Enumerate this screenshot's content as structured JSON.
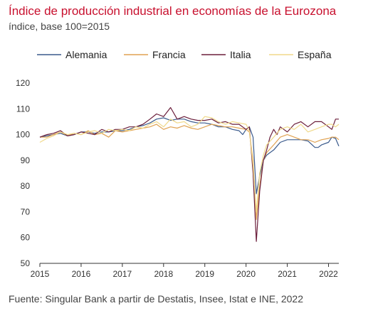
{
  "chart_data": {
    "type": "line",
    "title": "Índice de producción industrial en economías de la Eurozona",
    "subtitle": "índice, base 100=2015",
    "source": "Fuente: Singular Bank a partir de Destatis, Insee, Istat e INE, 2022",
    "ylim": [
      50,
      120
    ],
    "yticks": [
      50,
      60,
      70,
      80,
      90,
      100,
      110,
      120
    ],
    "ytick_labels": [
      "50",
      "60",
      "70",
      "80",
      "90",
      "100",
      "110",
      "120"
    ],
    "xlim": [
      2015,
      2022.25
    ],
    "xticks": [
      2015,
      2016,
      2017,
      2018,
      2019,
      2020,
      2021,
      2022
    ],
    "xtick_labels": [
      "2015",
      "2016",
      "2017",
      "2018",
      "2019",
      "2020",
      "2021",
      "2022"
    ],
    "legend_position": "top",
    "grid": false,
    "series": [
      {
        "name": "Alemania",
        "color": "#3a5a8c",
        "points": [
          [
            2015.0,
            99
          ],
          [
            2015.17,
            99.5
          ],
          [
            2015.33,
            100
          ],
          [
            2015.5,
            100.5
          ],
          [
            2015.67,
            99.5
          ],
          [
            2015.83,
            100
          ],
          [
            2016.0,
            101
          ],
          [
            2016.17,
            101
          ],
          [
            2016.33,
            100.5
          ],
          [
            2016.5,
            101
          ],
          [
            2016.67,
            101
          ],
          [
            2016.83,
            101.5
          ],
          [
            2017.0,
            101.5
          ],
          [
            2017.17,
            102
          ],
          [
            2017.33,
            103
          ],
          [
            2017.5,
            103.5
          ],
          [
            2017.67,
            104.5
          ],
          [
            2017.83,
            106
          ],
          [
            2018.0,
            106.5
          ],
          [
            2018.17,
            105.5
          ],
          [
            2018.33,
            106
          ],
          [
            2018.5,
            106
          ],
          [
            2018.67,
            105
          ],
          [
            2018.83,
            104.5
          ],
          [
            2019.0,
            104.5
          ],
          [
            2019.17,
            104
          ],
          [
            2019.33,
            103
          ],
          [
            2019.5,
            103
          ],
          [
            2019.67,
            102
          ],
          [
            2019.83,
            101.5
          ],
          [
            2019.92,
            100
          ],
          [
            2020.0,
            102
          ],
          [
            2020.08,
            103
          ],
          [
            2020.17,
            99
          ],
          [
            2020.25,
            77
          ],
          [
            2020.33,
            84
          ],
          [
            2020.42,
            90
          ],
          [
            2020.5,
            92
          ],
          [
            2020.58,
            93
          ],
          [
            2020.67,
            94
          ],
          [
            2020.83,
            97
          ],
          [
            2021.0,
            98
          ],
          [
            2021.17,
            98
          ],
          [
            2021.33,
            98
          ],
          [
            2021.5,
            97.5
          ],
          [
            2021.67,
            95
          ],
          [
            2021.75,
            95
          ],
          [
            2021.83,
            96
          ],
          [
            2022.0,
            97
          ],
          [
            2022.08,
            99
          ],
          [
            2022.17,
            98.5
          ],
          [
            2022.25,
            95.5
          ]
        ]
      },
      {
        "name": "Francia",
        "color": "#e0a252",
        "points": [
          [
            2015.0,
            99
          ],
          [
            2015.17,
            99
          ],
          [
            2015.33,
            100
          ],
          [
            2015.5,
            101
          ],
          [
            2015.67,
            99.5
          ],
          [
            2015.83,
            100.5
          ],
          [
            2016.0,
            100
          ],
          [
            2016.17,
            101.5
          ],
          [
            2016.33,
            100
          ],
          [
            2016.5,
            100.5
          ],
          [
            2016.67,
            99
          ],
          [
            2016.83,
            101.5
          ],
          [
            2017.0,
            101
          ],
          [
            2017.17,
            101.5
          ],
          [
            2017.33,
            102
          ],
          [
            2017.5,
            102.5
          ],
          [
            2017.67,
            103
          ],
          [
            2017.83,
            104
          ],
          [
            2018.0,
            102
          ],
          [
            2018.17,
            103
          ],
          [
            2018.33,
            102.5
          ],
          [
            2018.5,
            103.5
          ],
          [
            2018.67,
            102.5
          ],
          [
            2018.83,
            102
          ],
          [
            2019.0,
            103
          ],
          [
            2019.17,
            104
          ],
          [
            2019.33,
            103.5
          ],
          [
            2019.5,
            103
          ],
          [
            2019.67,
            103
          ],
          [
            2019.83,
            102.5
          ],
          [
            2020.0,
            102
          ],
          [
            2020.08,
            101
          ],
          [
            2020.17,
            90
          ],
          [
            2020.25,
            67
          ],
          [
            2020.33,
            80
          ],
          [
            2020.42,
            90
          ],
          [
            2020.5,
            93
          ],
          [
            2020.67,
            96
          ],
          [
            2020.83,
            99
          ],
          [
            2021.0,
            100
          ],
          [
            2021.17,
            99
          ],
          [
            2021.33,
            98
          ],
          [
            2021.5,
            98
          ],
          [
            2021.67,
            97
          ],
          [
            2021.83,
            98
          ],
          [
            2022.0,
            98.5
          ],
          [
            2022.08,
            99
          ],
          [
            2022.17,
            99
          ],
          [
            2022.25,
            98
          ]
        ]
      },
      {
        "name": "Italia",
        "color": "#6b1e3b",
        "points": [
          [
            2015.0,
            99
          ],
          [
            2015.17,
            100
          ],
          [
            2015.33,
            100.5
          ],
          [
            2015.5,
            101.5
          ],
          [
            2015.67,
            99.5
          ],
          [
            2015.83,
            100
          ],
          [
            2016.0,
            101
          ],
          [
            2016.17,
            100.5
          ],
          [
            2016.33,
            100
          ],
          [
            2016.5,
            102
          ],
          [
            2016.67,
            101
          ],
          [
            2016.83,
            102
          ],
          [
            2017.0,
            102
          ],
          [
            2017.17,
            103
          ],
          [
            2017.33,
            103
          ],
          [
            2017.5,
            104
          ],
          [
            2017.67,
            106
          ],
          [
            2017.83,
            108
          ],
          [
            2018.0,
            107
          ],
          [
            2018.17,
            110.5
          ],
          [
            2018.33,
            106
          ],
          [
            2018.5,
            107
          ],
          [
            2018.67,
            106
          ],
          [
            2018.83,
            105.5
          ],
          [
            2019.0,
            105.5
          ],
          [
            2019.17,
            106
          ],
          [
            2019.33,
            104.5
          ],
          [
            2019.5,
            105
          ],
          [
            2019.67,
            104
          ],
          [
            2019.83,
            104
          ],
          [
            2020.0,
            102
          ],
          [
            2020.08,
            103
          ],
          [
            2020.17,
            85
          ],
          [
            2020.25,
            58.5
          ],
          [
            2020.33,
            78
          ],
          [
            2020.42,
            90
          ],
          [
            2020.5,
            94
          ],
          [
            2020.58,
            99
          ],
          [
            2020.67,
            102
          ],
          [
            2020.75,
            100
          ],
          [
            2020.83,
            103
          ],
          [
            2021.0,
            101
          ],
          [
            2021.17,
            104
          ],
          [
            2021.33,
            105
          ],
          [
            2021.5,
            103
          ],
          [
            2021.67,
            105
          ],
          [
            2021.83,
            105
          ],
          [
            2022.0,
            103
          ],
          [
            2022.08,
            102
          ],
          [
            2022.17,
            106
          ],
          [
            2022.25,
            106
          ]
        ]
      },
      {
        "name": "España",
        "color": "#f0d98a",
        "points": [
          [
            2015.0,
            97
          ],
          [
            2015.17,
            98.5
          ],
          [
            2015.33,
            99.5
          ],
          [
            2015.5,
            101
          ],
          [
            2015.67,
            100
          ],
          [
            2015.83,
            100.5
          ],
          [
            2016.0,
            100
          ],
          [
            2016.17,
            101
          ],
          [
            2016.33,
            101.5
          ],
          [
            2016.5,
            100.5
          ],
          [
            2016.67,
            102
          ],
          [
            2016.83,
            101.5
          ],
          [
            2017.0,
            102
          ],
          [
            2017.17,
            101.5
          ],
          [
            2017.33,
            103
          ],
          [
            2017.5,
            102.5
          ],
          [
            2017.67,
            104
          ],
          [
            2017.83,
            105
          ],
          [
            2018.0,
            103
          ],
          [
            2018.17,
            106
          ],
          [
            2018.33,
            104.5
          ],
          [
            2018.5,
            105
          ],
          [
            2018.67,
            103
          ],
          [
            2018.83,
            104
          ],
          [
            2019.0,
            107
          ],
          [
            2019.17,
            106.5
          ],
          [
            2019.33,
            105
          ],
          [
            2019.5,
            104
          ],
          [
            2019.67,
            105
          ],
          [
            2019.83,
            104.5
          ],
          [
            2020.0,
            104
          ],
          [
            2020.08,
            101.5
          ],
          [
            2020.17,
            88
          ],
          [
            2020.25,
            70
          ],
          [
            2020.33,
            85
          ],
          [
            2020.42,
            92
          ],
          [
            2020.5,
            96
          ],
          [
            2020.67,
            99
          ],
          [
            2020.83,
            102
          ],
          [
            2021.0,
            103
          ],
          [
            2021.17,
            102
          ],
          [
            2021.33,
            104
          ],
          [
            2021.5,
            101
          ],
          [
            2021.67,
            102
          ],
          [
            2021.83,
            103
          ],
          [
            2022.0,
            104
          ],
          [
            2022.08,
            104
          ],
          [
            2022.17,
            103
          ],
          [
            2022.25,
            104
          ]
        ]
      }
    ]
  }
}
